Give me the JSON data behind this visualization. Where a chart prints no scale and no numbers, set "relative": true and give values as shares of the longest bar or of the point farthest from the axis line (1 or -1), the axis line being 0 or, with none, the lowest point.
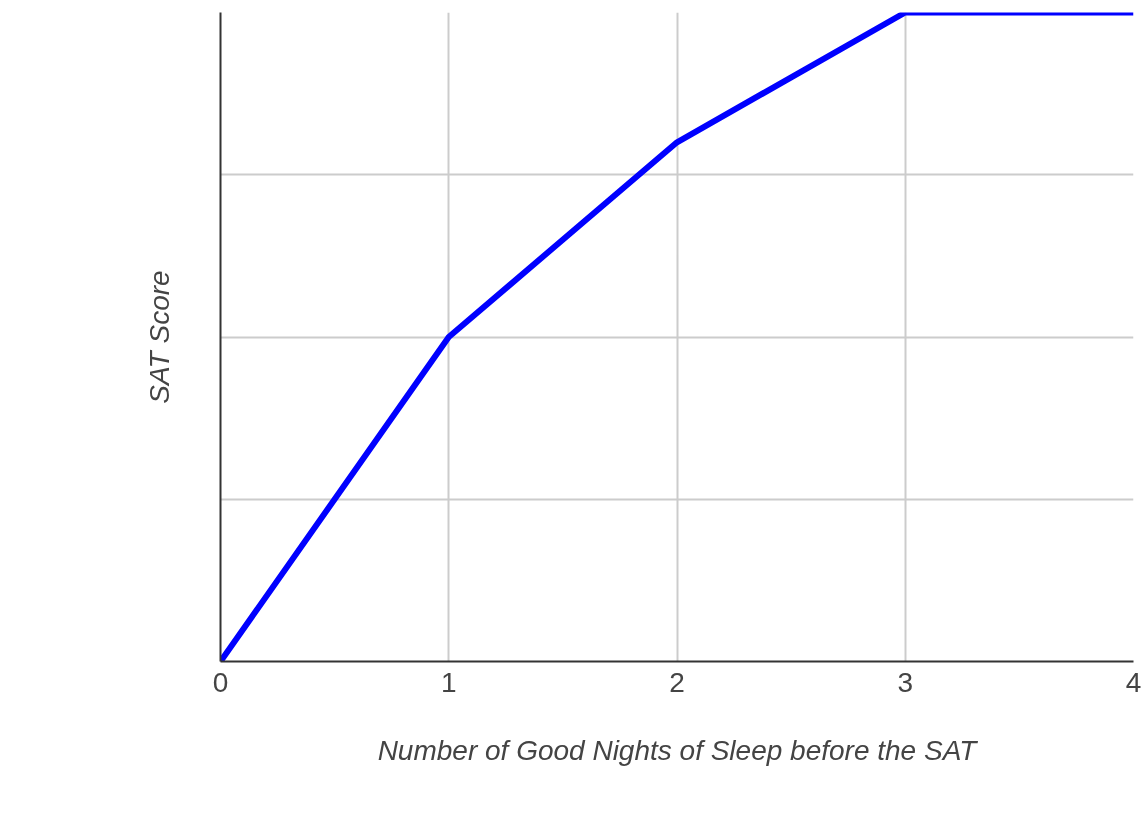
{
  "chart_data": {
    "type": "line",
    "xlabel": "Number of Good Nights of Sleep before the SAT",
    "ylabel": "SAT Score",
    "x": [
      0,
      1,
      2,
      3,
      4
    ],
    "series": [
      {
        "color": "#0000ff",
        "values": [
          0,
          0.5,
          0.8,
          1,
          1
        ]
      }
    ],
    "relative": true,
    "xlim": [
      0,
      4
    ],
    "xticks": [
      0,
      1,
      2,
      3,
      4
    ],
    "grid": true,
    "marker": "none",
    "line_style": "solid"
  }
}
